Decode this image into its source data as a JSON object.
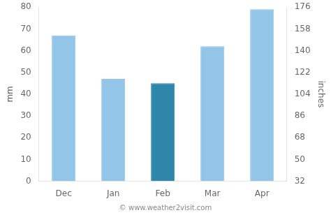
{
  "chart_data": {
    "type": "bar",
    "categories": [
      "Dec",
      "Jan",
      "Feb",
      "Mar",
      "Apr"
    ],
    "values": [
      67,
      47,
      45,
      62,
      79
    ],
    "colors": [
      "#92C5E8",
      "#92C5E8",
      "#2E86AB",
      "#92C5E8",
      "#92C5E8"
    ],
    "ylabel": "mm",
    "y2label": "inches",
    "ylim": [
      0,
      80
    ],
    "yticks": [
      0,
      10,
      20,
      30,
      40,
      50,
      60,
      70,
      80
    ],
    "y2lim": [
      32,
      176
    ],
    "y2ticks": [
      32,
      50,
      68,
      86,
      104,
      122,
      140,
      158,
      176
    ],
    "grid": false,
    "annotations": [
      "© www.weather2visit.com"
    ]
  }
}
